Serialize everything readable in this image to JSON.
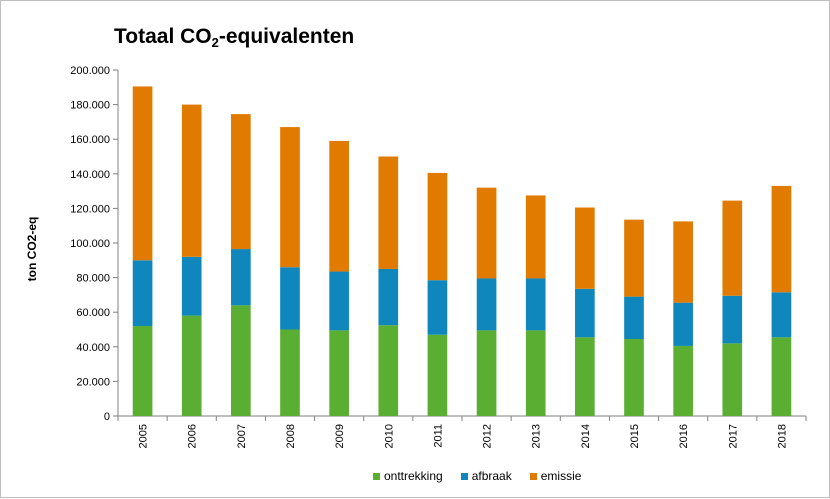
{
  "chart_data": {
    "type": "bar",
    "stacked": true,
    "title_main": "Totaal CO",
    "title_sub": "2",
    "title_rest": "-equivalenten",
    "ylabel": "ton CO2-eq",
    "xlabel": "",
    "ylim": [
      0,
      200000
    ],
    "yticks": [
      "0",
      "20.000",
      "40.000",
      "60.000",
      "80.000",
      "100.000",
      "120.000",
      "140.000",
      "160.000",
      "180.000",
      "200.000"
    ],
    "grid": false,
    "legend_position": "bottom",
    "categories": [
      "2005",
      "2006",
      "2007",
      "2008",
      "2009",
      "2010",
      "2011",
      "2012",
      "2013",
      "2014",
      "2015",
      "2016",
      "2017",
      "2018"
    ],
    "series": [
      {
        "name": "onttrekking",
        "color": "#5aae32",
        "values": [
          52000,
          58000,
          64000,
          50000,
          49500,
          52500,
          47000,
          49500,
          49500,
          45500,
          44500,
          40500,
          42000,
          45500
        ]
      },
      {
        "name": "afbraak",
        "color": "#0f87bd",
        "values": [
          38000,
          34000,
          32500,
          36000,
          34000,
          32500,
          31500,
          30000,
          30000,
          28000,
          24500,
          25000,
          27500,
          26000
        ]
      },
      {
        "name": "emissie",
        "color": "#e07b00",
        "values": [
          100500,
          88000,
          78000,
          81000,
          75500,
          65000,
          62000,
          52500,
          48000,
          47000,
          44500,
          47000,
          55000,
          61500
        ]
      }
    ]
  }
}
